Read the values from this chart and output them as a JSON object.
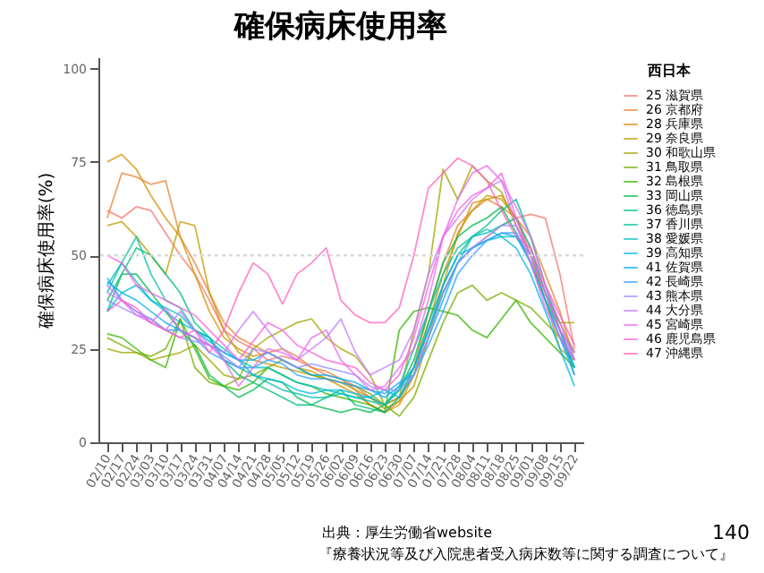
{
  "chart_data": {
    "type": "line",
    "title": "確保病床使用率",
    "ylabel": "確保病床使用率(%)",
    "legend_title": "西日本",
    "legend": "right",
    "grid": false,
    "categories": [
      "02/10",
      "02/17",
      "02/24",
      "03/03",
      "03/10",
      "03/17",
      "03/24",
      "03/31",
      "04/07",
      "04/14",
      "04/21",
      "04/28",
      "05/05",
      "05/12",
      "05/19",
      "05/26",
      "06/02",
      "06/09",
      "06/16",
      "06/23",
      "06/30",
      "07/07",
      "07/14",
      "07/21",
      "07/28",
      "08/04",
      "08/11",
      "08/18",
      "08/25",
      "09/01",
      "09/08",
      "09/15",
      "09/22"
    ],
    "ylim": [
      0,
      103
    ],
    "yticks": [
      0,
      25,
      50,
      75,
      100
    ],
    "ref_lines": [
      {
        "axis": "y",
        "value": 50,
        "color": "#d9d9d9",
        "line_style": "dotted"
      }
    ],
    "series": [
      {
        "name": "25 滋賀県",
        "color": "#f8766d",
        "values": [
          62,
          60,
          63,
          62,
          56,
          50,
          45,
          38,
          30,
          27,
          25,
          22,
          23,
          22,
          20,
          18,
          17,
          15,
          12,
          10,
          12,
          18,
          30,
          40,
          48,
          52,
          55,
          58,
          60,
          61,
          60,
          45,
          25
        ]
      },
      {
        "name": "26 京都府",
        "color": "#ea8331",
        "values": [
          60,
          72,
          71,
          69,
          70,
          55,
          48,
          40,
          32,
          28,
          26,
          24,
          25,
          23,
          20,
          19,
          17,
          14,
          10,
          8,
          11,
          20,
          35,
          48,
          58,
          62,
          65,
          63,
          60,
          55,
          45,
          35,
          22
        ]
      },
      {
        "name": "28 兵庫県",
        "color": "#d89000",
        "values": [
          75,
          77,
          73,
          66,
          60,
          55,
          45,
          35,
          28,
          25,
          23,
          24,
          22,
          20,
          19,
          17,
          15,
          13,
          10,
          8,
          10,
          18,
          32,
          45,
          55,
          64,
          65,
          66,
          60,
          52,
          40,
          32,
          24
        ]
      },
      {
        "name": "29 奈良県",
        "color": "#c09b00",
        "values": [
          58,
          59,
          55,
          50,
          45,
          59,
          58,
          40,
          30,
          24,
          22,
          21,
          20,
          19,
          18,
          17,
          16,
          14,
          12,
          9,
          11,
          15,
          28,
          42,
          56,
          62,
          66,
          65,
          60,
          50,
          38,
          25,
          22
        ]
      },
      {
        "name": "30 和歌山県",
        "color": "#a3a500",
        "values": [
          25,
          24,
          24,
          22,
          23,
          24,
          26,
          22,
          18,
          17,
          25,
          28,
          30,
          32,
          33,
          28,
          25,
          23,
          18,
          10,
          12,
          30,
          45,
          73,
          65,
          74,
          70,
          67,
          58,
          50,
          38,
          32,
          32
        ]
      },
      {
        "name": "31 鳥取県",
        "color": "#7cae00",
        "values": [
          28,
          26,
          24,
          23,
          25,
          33,
          20,
          16,
          15,
          17,
          18,
          20,
          22,
          20,
          18,
          17,
          16,
          15,
          13,
          10,
          7,
          12,
          22,
          32,
          40,
          42,
          38,
          40,
          38,
          36,
          32,
          28,
          22
        ]
      },
      {
        "name": "32 島根県",
        "color": "#39b600",
        "values": [
          29,
          28,
          25,
          22,
          20,
          33,
          25,
          17,
          15,
          14,
          16,
          20,
          18,
          16,
          15,
          13,
          12,
          11,
          10,
          8,
          30,
          35,
          36,
          35,
          34,
          30,
          28,
          33,
          38,
          32,
          28,
          24,
          20
        ]
      },
      {
        "name": "33 岡山県",
        "color": "#00bb4e",
        "values": [
          38,
          45,
          45,
          40,
          35,
          30,
          26,
          18,
          15,
          12,
          14,
          17,
          16,
          12,
          10,
          9,
          8,
          9,
          8,
          10,
          14,
          22,
          35,
          48,
          55,
          58,
          60,
          63,
          56,
          48,
          38,
          30,
          20
        ]
      },
      {
        "name": "36 徳島県",
        "color": "#00bf7d",
        "values": [
          35,
          45,
          52,
          50,
          45,
          40,
          32,
          28,
          22,
          18,
          16,
          14,
          12,
          10,
          10,
          12,
          14,
          10,
          9,
          8,
          12,
          20,
          32,
          42,
          50,
          55,
          58,
          62,
          65,
          55,
          42,
          30,
          18
        ]
      },
      {
        "name": "37 香川県",
        "color": "#00c1a3",
        "values": [
          42,
          48,
          55,
          45,
          38,
          36,
          30,
          28,
          22,
          20,
          18,
          16,
          14,
          13,
          12,
          12,
          13,
          12,
          11,
          10,
          15,
          25,
          35,
          45,
          52,
          55,
          56,
          58,
          60,
          52,
          40,
          30,
          24
        ]
      },
      {
        "name": "38 愛媛県",
        "color": "#00bfc4",
        "values": [
          40,
          48,
          43,
          38,
          36,
          34,
          30,
          28,
          25,
          22,
          20,
          20,
          18,
          16,
          15,
          14,
          13,
          12,
          12,
          10,
          14,
          20,
          30,
          40,
          48,
          55,
          57,
          55,
          55,
          48,
          38,
          28,
          20
        ]
      },
      {
        "name": "39 高知県",
        "color": "#00bae0",
        "values": [
          35,
          40,
          42,
          38,
          35,
          32,
          30,
          27,
          24,
          22,
          18,
          17,
          16,
          14,
          13,
          14,
          14,
          13,
          12,
          14,
          12,
          18,
          28,
          38,
          48,
          52,
          54,
          55,
          52,
          45,
          35,
          25,
          15
        ]
      },
      {
        "name": "41 佐賀県",
        "color": "#00b0f6",
        "values": [
          43,
          40,
          38,
          35,
          32,
          30,
          28,
          26,
          24,
          22,
          22,
          24,
          22,
          20,
          18,
          18,
          17,
          16,
          14,
          12,
          15,
          20,
          30,
          42,
          50,
          52,
          54,
          56,
          55,
          50,
          40,
          30,
          20
        ]
      },
      {
        "name": "42 長崎県",
        "color": "#35a2ff",
        "values": [
          44,
          38,
          35,
          33,
          30,
          30,
          28,
          24,
          22,
          20,
          20,
          22,
          21,
          18,
          17,
          17,
          16,
          15,
          14,
          13,
          16,
          18,
          26,
          35,
          45,
          50,
          54,
          56,
          56,
          48,
          38,
          28,
          18
        ]
      },
      {
        "name": "43 熊本県",
        "color": "#9590ff",
        "values": [
          38,
          36,
          34,
          33,
          30,
          28,
          27,
          26,
          23,
          20,
          25,
          24,
          22,
          20,
          21,
          20,
          19,
          18,
          15,
          14,
          14,
          18,
          28,
          40,
          48,
          52,
          55,
          58,
          58,
          50,
          40,
          30,
          22
        ]
      },
      {
        "name": "44 大分県",
        "color": "#c77cff",
        "values": [
          40,
          38,
          35,
          32,
          30,
          35,
          30,
          26,
          24,
          30,
          35,
          30,
          25,
          22,
          25,
          28,
          33,
          24,
          18,
          20,
          22,
          30,
          45,
          55,
          60,
          65,
          68,
          70,
          63,
          55,
          42,
          32,
          22
        ]
      },
      {
        "name": "45 宮崎県",
        "color": "#e76bf3",
        "values": [
          42,
          38,
          34,
          32,
          36,
          30,
          28,
          26,
          22,
          15,
          20,
          25,
          24,
          22,
          28,
          30,
          22,
          18,
          14,
          15,
          20,
          25,
          38,
          55,
          65,
          72,
          74,
          70,
          58,
          48,
          36,
          28,
          22
        ]
      },
      {
        "name": "46 鹿児島県",
        "color": "#fa62db",
        "values": [
          50,
          48,
          42,
          40,
          38,
          36,
          34,
          30,
          26,
          22,
          27,
          32,
          30,
          26,
          24,
          22,
          21,
          20,
          16,
          14,
          18,
          28,
          42,
          55,
          62,
          66,
          68,
          72,
          60,
          50,
          40,
          30,
          24
        ]
      },
      {
        "name": "47 沖縄県",
        "color": "#ff62bc",
        "values": [
          35,
          38,
          36,
          32,
          30,
          28,
          30,
          24,
          30,
          40,
          48,
          45,
          37,
          45,
          48,
          52,
          38,
          34,
          32,
          32,
          36,
          50,
          68,
          72,
          76,
          74,
          70,
          62,
          55,
          52,
          42,
          34,
          26
        ]
      }
    ],
    "annotations": [
      "出典：厚生労働省website",
      "『療養状況等及び入院患者受入病床数等に関する調査について』",
      "140"
    ]
  }
}
